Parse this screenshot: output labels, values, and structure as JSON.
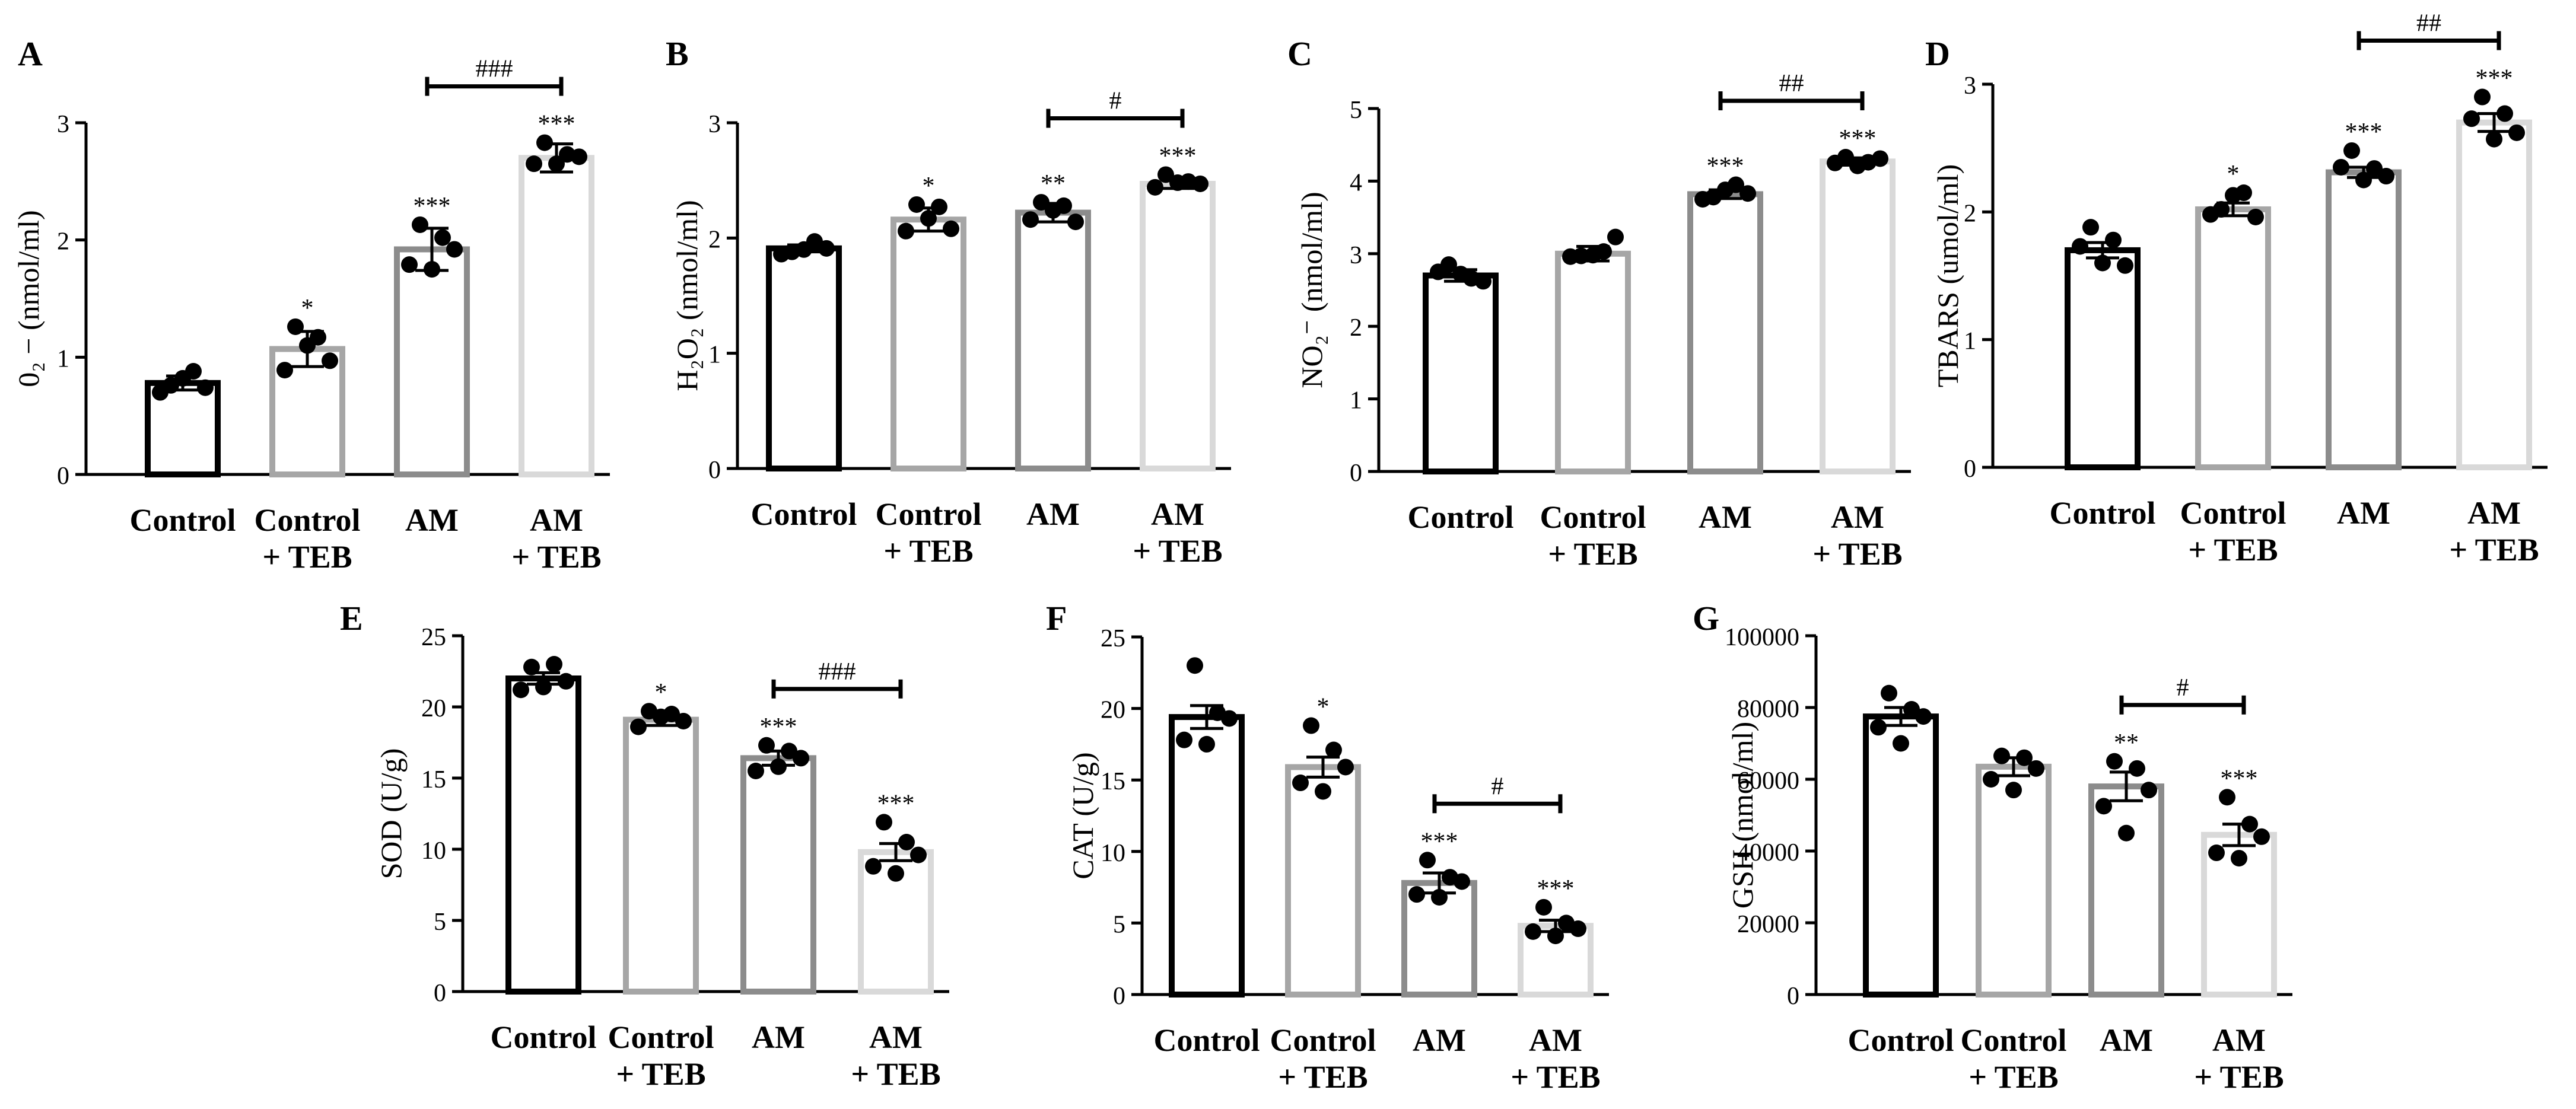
{
  "chart_data": [
    {
      "panel": "A",
      "type": "bar",
      "ylabel": "0₂ − (nmol/ml)",
      "ylim": [
        0,
        3
      ],
      "yticks": [
        0,
        1,
        2,
        3
      ],
      "ytick_labels": [
        "0",
        "1",
        "2",
        "3"
      ],
      "categories": [
        [
          "Control"
        ],
        [
          "Control",
          "+ TEB"
        ],
        [
          "AM"
        ],
        [
          "AM",
          "+ TEB"
        ]
      ],
      "means": [
        0.78,
        1.07,
        1.92,
        2.7
      ],
      "sem": [
        0.06,
        0.15,
        0.18,
        0.12
      ],
      "points": [
        [
          0.76,
          0.88,
          0.74,
          0.7,
          0.82
        ],
        [
          1.26,
          1.17,
          0.97,
          0.89,
          1.1
        ],
        [
          2.13,
          2.02,
          1.92,
          1.79,
          1.75
        ],
        [
          2.83,
          2.73,
          2.71,
          2.65,
          2.65
        ]
      ],
      "sig": [
        "",
        "*",
        "***",
        "***"
      ],
      "comparisons": [
        {
          "from": 2,
          "to": 3,
          "label": "###"
        }
      ]
    },
    {
      "panel": "B",
      "type": "bar",
      "ylabel": "H₂O₂ (nmol/ml)",
      "ylim": [
        0,
        3
      ],
      "yticks": [
        0,
        1,
        2,
        3
      ],
      "ytick_labels": [
        "0",
        "1",
        "2",
        "3"
      ],
      "categories": [
        [
          "Control"
        ],
        [
          "Control",
          "+ TEB"
        ],
        [
          "AM"
        ],
        [
          "AM",
          "+ TEB"
        ]
      ],
      "means": [
        1.91,
        2.16,
        2.22,
        2.47
      ],
      "sem": [
        0.03,
        0.1,
        0.08,
        0.04
      ],
      "points": [
        [
          1.88,
          1.97,
          1.91,
          1.86,
          1.9
        ],
        [
          2.29,
          2.27,
          2.08,
          2.06,
          2.17
        ],
        [
          2.31,
          2.28,
          2.14,
          2.16,
          2.24
        ],
        [
          2.55,
          2.49,
          2.47,
          2.44,
          2.48
        ]
      ],
      "sig": [
        "",
        "*",
        "**",
        "***"
      ],
      "comparisons": [
        {
          "from": 2,
          "to": 3,
          "label": "#"
        }
      ]
    },
    {
      "panel": "C",
      "type": "bar",
      "ylabel": "NO₂⁻ (nmol/ml)",
      "ylim": [
        0,
        5
      ],
      "yticks": [
        0,
        1,
        2,
        3,
        4,
        5
      ],
      "ytick_labels": [
        "0",
        "1",
        "2",
        "3",
        "4",
        "5"
      ],
      "categories": [
        [
          "Control"
        ],
        [
          "Control",
          "+ TEB"
        ],
        [
          "AM"
        ],
        [
          "AM",
          "+ TEB"
        ]
      ],
      "means": [
        2.7,
        3.0,
        3.82,
        4.27
      ],
      "sem": [
        0.08,
        0.1,
        0.06,
        0.05
      ],
      "points": [
        [
          2.85,
          2.66,
          2.62,
          2.75,
          2.72
        ],
        [
          2.97,
          3.03,
          3.23,
          2.96,
          2.98
        ],
        [
          3.78,
          3.95,
          3.83,
          3.75,
          3.88
        ],
        [
          4.33,
          4.26,
          4.31,
          4.25,
          4.21
        ]
      ],
      "sig": [
        "",
        "",
        "***",
        "***"
      ],
      "comparisons": [
        {
          "from": 2,
          "to": 3,
          "label": "##"
        }
      ]
    },
    {
      "panel": "D",
      "type": "bar",
      "ylabel": "TBARS (umol/ml)",
      "ylim": [
        0,
        3
      ],
      "yticks": [
        0,
        1,
        2,
        3
      ],
      "ytick_labels": [
        "0",
        "1",
        "2",
        "3"
      ],
      "categories": [
        [
          "Control"
        ],
        [
          "Control",
          "+ TEB"
        ],
        [
          "AM"
        ],
        [
          "AM",
          "+ TEB"
        ]
      ],
      "means": [
        1.7,
        2.02,
        2.31,
        2.7
      ],
      "sem": [
        0.06,
        0.05,
        0.04,
        0.07
      ],
      "points": [
        [
          1.88,
          1.78,
          1.58,
          1.73,
          1.6
        ],
        [
          2.02,
          2.15,
          1.96,
          1.98,
          2.13
        ],
        [
          2.48,
          2.34,
          2.28,
          2.35,
          2.25
        ],
        [
          2.9,
          2.77,
          2.62,
          2.73,
          2.57
        ]
      ],
      "sig": [
        "",
        "*",
        "***",
        "***"
      ],
      "comparisons": [
        {
          "from": 2,
          "to": 3,
          "label": "##"
        }
      ]
    },
    {
      "panel": "E",
      "type": "bar",
      "ylabel": "SOD (U/g)",
      "ylim": [
        0,
        25
      ],
      "yticks": [
        0,
        5,
        10,
        15,
        20,
        25
      ],
      "ytick_labels": [
        "0",
        "5",
        "10",
        "15",
        "20",
        "25"
      ],
      "categories": [
        [
          "Control"
        ],
        [
          "Control",
          "+ TEB"
        ],
        [
          "AM"
        ],
        [
          "AM",
          "+ TEB"
        ]
      ],
      "means": [
        22.0,
        19.1,
        16.4,
        9.8
      ],
      "sem": [
        0.4,
        0.4,
        0.5,
        0.6
      ],
      "points": [
        [
          22.8,
          23.0,
          21.8,
          21.2,
          21.4
        ],
        [
          19.7,
          19.5,
          19.0,
          18.6,
          19.3
        ],
        [
          17.3,
          16.9,
          16.4,
          15.5,
          15.8
        ],
        [
          11.9,
          10.5,
          9.6,
          8.8,
          8.3
        ]
      ],
      "sig": [
        "",
        "*",
        "***",
        "***"
      ],
      "comparisons": [
        {
          "from": 2,
          "to": 3,
          "label": "###"
        }
      ]
    },
    {
      "panel": "F",
      "type": "bar",
      "ylabel": "CAT (U/g)",
      "ylim": [
        0,
        25
      ],
      "yticks": [
        0,
        5,
        10,
        15,
        20,
        25
      ],
      "ytick_labels": [
        "0",
        "5",
        "10",
        "15",
        "20",
        "25"
      ],
      "categories": [
        [
          "Control"
        ],
        [
          "Control",
          "+ TEB"
        ],
        [
          "AM"
        ],
        [
          "AM",
          "+ TEB"
        ]
      ],
      "means": [
        19.4,
        15.9,
        7.8,
        4.8
      ],
      "sem": [
        0.8,
        0.7,
        0.7,
        0.4
      ],
      "points": [
        [
          23.0,
          19.7,
          19.3,
          17.8,
          17.5
        ],
        [
          18.8,
          17.1,
          15.9,
          14.8,
          14.2
        ],
        [
          9.4,
          8.2,
          7.9,
          7.0,
          6.8
        ],
        [
          6.1,
          5.0,
          4.6,
          4.4,
          4.1
        ]
      ],
      "sig": [
        "",
        "*",
        "***",
        "***"
      ],
      "comparisons": [
        {
          "from": 2,
          "to": 3,
          "label": "#"
        }
      ]
    },
    {
      "panel": "G",
      "type": "bar",
      "ylabel": "GSH (nmol/ml)",
      "ylim": [
        0,
        100000
      ],
      "yticks": [
        0,
        20000,
        40000,
        60000,
        80000,
        100000
      ],
      "ytick_labels": [
        "0",
        "20000",
        "40000",
        "60000",
        "80000",
        "100000"
      ],
      "categories": [
        [
          "Control"
        ],
        [
          "Control",
          "+ TEB"
        ],
        [
          "AM"
        ],
        [
          "AM",
          "+ TEB"
        ]
      ],
      "means": [
        77500,
        63500,
        58000,
        44500
      ],
      "sem": [
        2500,
        2500,
        4000,
        3000
      ],
      "points": [
        [
          84000,
          79500,
          77500,
          74500,
          70000
        ],
        [
          66500,
          66000,
          63000,
          60000,
          57000
        ],
        [
          65000,
          63000,
          57000,
          52500,
          45000
        ],
        [
          55000,
          47500,
          44000,
          39500,
          38000
        ]
      ],
      "sig": [
        "",
        "",
        "**",
        "***"
      ],
      "comparisons": [
        {
          "from": 2,
          "to": 3,
          "label": "#"
        }
      ]
    }
  ],
  "colors": {
    "bar_edges": [
      "#000000",
      "#a6a6a6",
      "#8c8c8c",
      "#d9d9d9"
    ],
    "points": "#000000",
    "axis": "#000000"
  }
}
